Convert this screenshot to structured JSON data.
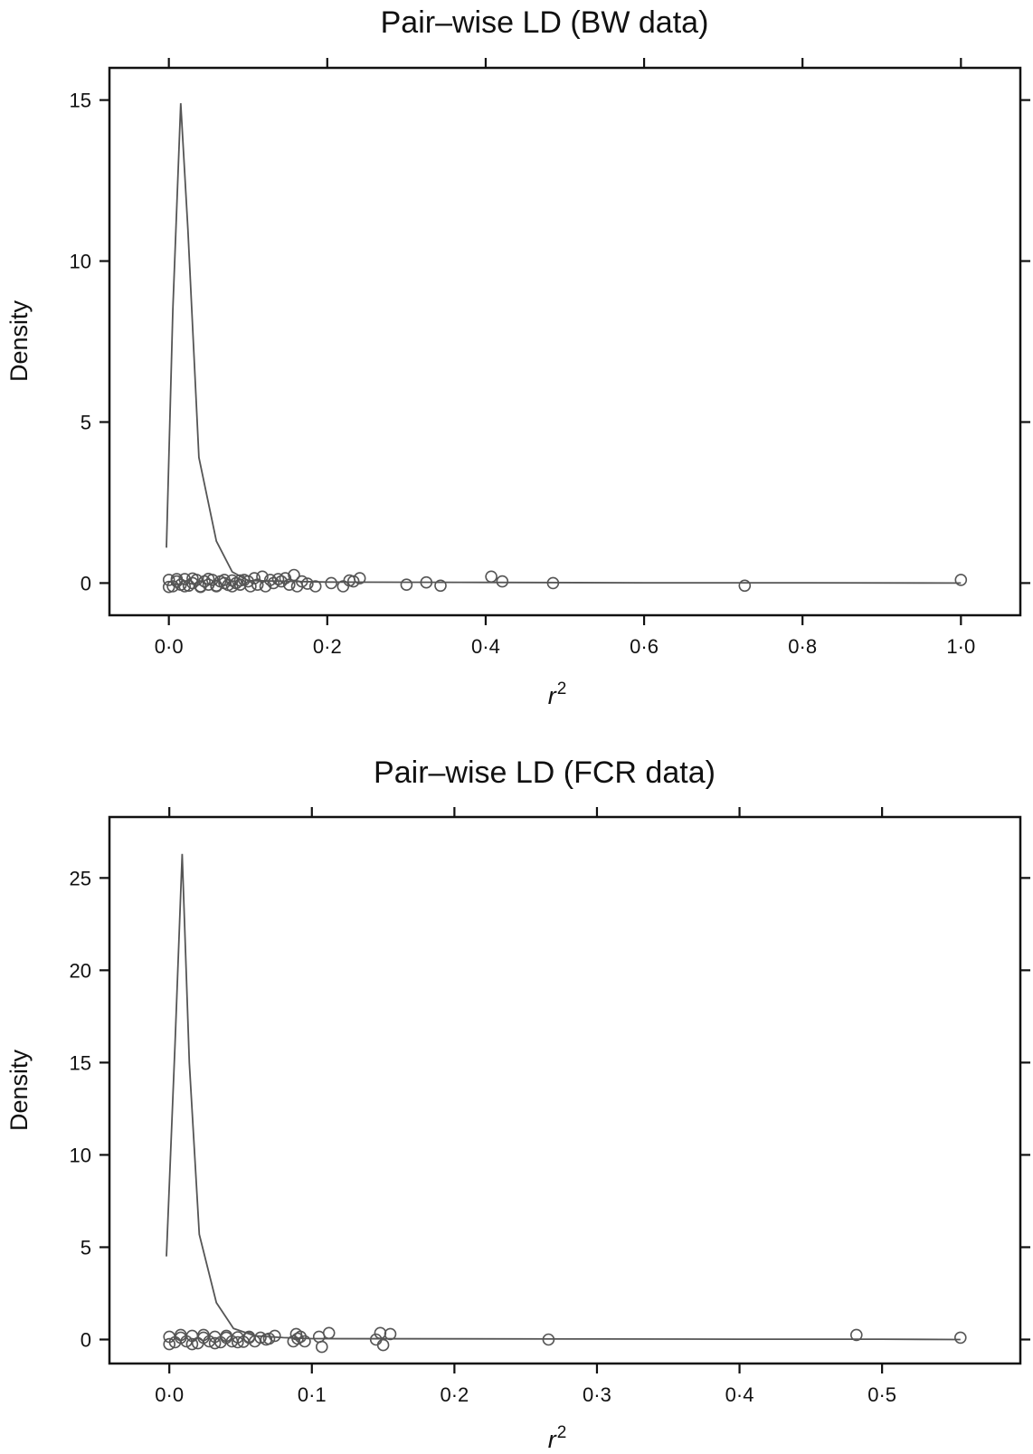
{
  "chart_data": [
    {
      "type": "scatter",
      "title": "Pair–wise LD (BW data)",
      "xlabel": "r",
      "xlabel_sup": "2",
      "ylabel": "Density",
      "xlim": [
        -0.075,
        1.075
      ],
      "ylim": [
        -1.0,
        16.0
      ],
      "xticks": [
        0.0,
        0.2,
        0.4,
        0.6,
        0.8,
        1.0
      ],
      "xtick_labels": [
        "0·0",
        "0·2",
        "0·4",
        "0·6",
        "0·8",
        "1·0"
      ],
      "yticks": [
        0,
        5,
        10,
        15
      ],
      "ytick_labels": [
        "0",
        "5",
        "10",
        "15"
      ],
      "ticks_top": true,
      "ticks_right": true,
      "grid": false,
      "density_curve": {
        "x": [
          -0.003,
          0.005,
          0.015,
          0.024,
          0.038,
          0.06,
          0.08,
          0.1,
          0.2,
          0.4,
          0.6,
          0.8,
          1.0
        ],
        "y": [
          1.1,
          8.5,
          14.9,
          11.0,
          3.9,
          1.3,
          0.35,
          0.08,
          0.03,
          0.02,
          0.01,
          0.01,
          0.0
        ]
      },
      "points": {
        "x": [
          0.0,
          0.005,
          0.01,
          0.015,
          0.02,
          0.025,
          0.03,
          0.035,
          0.04,
          0.045,
          0.05,
          0.055,
          0.06,
          0.065,
          0.07,
          0.075,
          0.08,
          0.085,
          0.09,
          0.095,
          0.0,
          0.01,
          0.02,
          0.03,
          0.04,
          0.05,
          0.06,
          0.07,
          0.08,
          0.09,
          0.1,
          0.103,
          0.108,
          0.112,
          0.118,
          0.122,
          0.128,
          0.132,
          0.138,
          0.142,
          0.147,
          0.152,
          0.158,
          0.162,
          0.168,
          0.175,
          0.185,
          0.205,
          0.22,
          0.228,
          0.233,
          0.241,
          0.3,
          0.325,
          0.343,
          0.407,
          0.421,
          0.485,
          0.727,
          1.0
        ],
        "y": [
          0.1,
          -0.1,
          0.05,
          -0.05,
          0.12,
          -0.08,
          0.0,
          0.1,
          -0.1,
          0.05,
          -0.05,
          0.1,
          -0.08,
          0.05,
          0.0,
          -0.06,
          0.08,
          0.0,
          -0.05,
          0.1,
          -0.12,
          0.12,
          -0.1,
          0.14,
          -0.12,
          0.13,
          -0.1,
          0.1,
          -0.1,
          0.08,
          0.05,
          -0.1,
          0.15,
          -0.05,
          0.2,
          -0.1,
          0.1,
          0.0,
          0.12,
          0.05,
          0.15,
          -0.05,
          0.25,
          -0.1,
          0.05,
          -0.02,
          -0.1,
          0.0,
          -0.1,
          0.08,
          0.05,
          0.15,
          -0.05,
          0.02,
          -0.08,
          0.2,
          0.05,
          0.0,
          -0.08,
          0.1
        ]
      }
    },
    {
      "type": "scatter",
      "title": "Pair–wise LD (FCR data)",
      "xlabel": "r",
      "xlabel_sup": "2",
      "ylabel": "Density",
      "xlim": [
        -0.042,
        0.597
      ],
      "ylim": [
        -1.3,
        28.3
      ],
      "xticks": [
        0.0,
        0.1,
        0.2,
        0.3,
        0.4,
        0.5
      ],
      "xtick_labels": [
        "0·0",
        "0·1",
        "0·2",
        "0·3",
        "0·4",
        "0·5"
      ],
      "yticks": [
        0,
        5,
        10,
        15,
        20,
        25
      ],
      "ytick_labels": [
        "0",
        "5",
        "10",
        "15",
        "20",
        "25"
      ],
      "ticks_top": true,
      "ticks_right": true,
      "grid": false,
      "density_curve": {
        "x": [
          -0.002,
          0.004,
          0.009,
          0.014,
          0.021,
          0.033,
          0.045,
          0.06,
          0.08,
          0.1,
          0.2,
          0.3,
          0.4,
          0.5,
          0.555
        ],
        "y": [
          4.5,
          16.0,
          26.3,
          15.0,
          5.7,
          2.0,
          0.6,
          0.2,
          0.1,
          0.05,
          0.04,
          0.03,
          0.02,
          0.02,
          0.0
        ]
      },
      "points": {
        "x": [
          0.0,
          0.004,
          0.008,
          0.012,
          0.016,
          0.02,
          0.024,
          0.028,
          0.032,
          0.036,
          0.04,
          0.044,
          0.048,
          0.052,
          0.056,
          0.06,
          0.064,
          0.068,
          0.0,
          0.008,
          0.016,
          0.024,
          0.032,
          0.04,
          0.048,
          0.056,
          0.07,
          0.074,
          0.087,
          0.089,
          0.09,
          0.092,
          0.095,
          0.105,
          0.107,
          0.112,
          0.145,
          0.148,
          0.15,
          0.155,
          0.266,
          0.482,
          0.555
        ],
        "y": [
          0.15,
          -0.15,
          0.1,
          -0.1,
          0.2,
          -0.2,
          0.1,
          -0.1,
          0.15,
          -0.15,
          0.1,
          -0.1,
          0.12,
          -0.12,
          0.1,
          -0.1,
          0.1,
          0.0,
          -0.25,
          0.25,
          -0.25,
          0.25,
          -0.2,
          0.2,
          -0.15,
          0.15,
          0.05,
          0.2,
          -0.1,
          0.3,
          0.05,
          0.15,
          -0.1,
          0.15,
          -0.4,
          0.35,
          0.0,
          0.35,
          -0.3,
          0.3,
          0.0,
          0.25,
          0.1
        ]
      }
    }
  ]
}
